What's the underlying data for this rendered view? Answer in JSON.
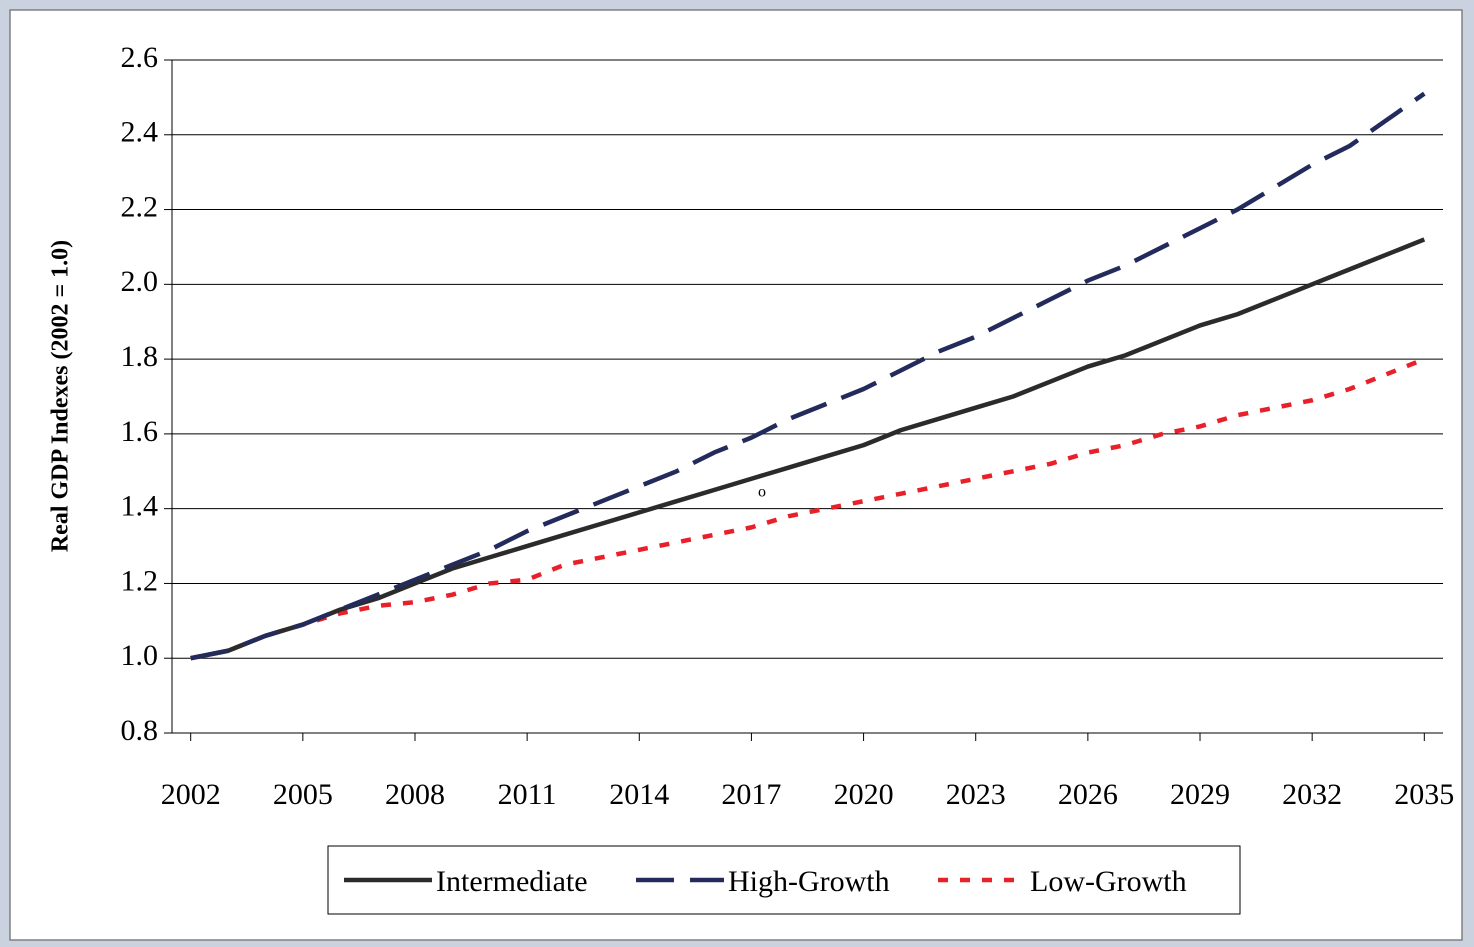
{
  "chart_data": {
    "type": "line",
    "y_label": "Real GDP Indexes (2002 = 1.0)",
    "annotation": "o",
    "x": [
      2002,
      2003,
      2004,
      2005,
      2006,
      2007,
      2008,
      2009,
      2010,
      2011,
      2012,
      2013,
      2014,
      2015,
      2016,
      2017,
      2018,
      2019,
      2020,
      2021,
      2022,
      2023,
      2024,
      2025,
      2026,
      2027,
      2028,
      2029,
      2030,
      2031,
      2032,
      2033,
      2034,
      2035
    ],
    "series": [
      {
        "name": "Intermediate",
        "color": "#2b2b2b",
        "dash": "solid",
        "values": [
          1.0,
          1.02,
          1.06,
          1.09,
          1.13,
          1.16,
          1.2,
          1.24,
          1.27,
          1.3,
          1.33,
          1.36,
          1.39,
          1.42,
          1.45,
          1.48,
          1.51,
          1.54,
          1.57,
          1.61,
          1.64,
          1.67,
          1.7,
          1.74,
          1.78,
          1.81,
          1.85,
          1.89,
          1.92,
          1.96,
          2.0,
          2.04,
          2.08,
          2.12
        ]
      },
      {
        "name": "High-Growth",
        "color": "#232b5c",
        "dash": "long",
        "values": [
          1.0,
          1.02,
          1.06,
          1.09,
          1.13,
          1.17,
          1.21,
          1.25,
          1.29,
          1.34,
          1.38,
          1.42,
          1.46,
          1.5,
          1.55,
          1.59,
          1.64,
          1.68,
          1.72,
          1.77,
          1.82,
          1.86,
          1.91,
          1.96,
          2.01,
          2.05,
          2.1,
          2.15,
          2.2,
          2.26,
          2.32,
          2.37,
          2.44,
          2.51
        ]
      },
      {
        "name": "Low-Growth",
        "color": "#e8202a",
        "dash": "short",
        "values": [
          1.0,
          1.02,
          1.06,
          1.09,
          1.12,
          1.14,
          1.15,
          1.17,
          1.2,
          1.21,
          1.25,
          1.27,
          1.29,
          1.31,
          1.33,
          1.35,
          1.38,
          1.4,
          1.42,
          1.44,
          1.46,
          1.48,
          1.5,
          1.52,
          1.55,
          1.57,
          1.6,
          1.62,
          1.65,
          1.67,
          1.69,
          1.72,
          1.76,
          1.8
        ]
      }
    ],
    "xlim": [
      2001.5,
      2035.5
    ],
    "xticks": [
      2002,
      2005,
      2008,
      2011,
      2014,
      2017,
      2020,
      2023,
      2026,
      2029,
      2032,
      2035
    ],
    "ylim": [
      0.8,
      2.6
    ],
    "yticks": [
      0.8,
      {
        "value": 1,
        "label": "1.0"
      },
      1.2,
      1.4,
      1.6,
      1.8,
      {
        "value": 2,
        "label": "2.0"
      },
      2.2,
      2.4,
      2.6
    ],
    "grid": true
  }
}
